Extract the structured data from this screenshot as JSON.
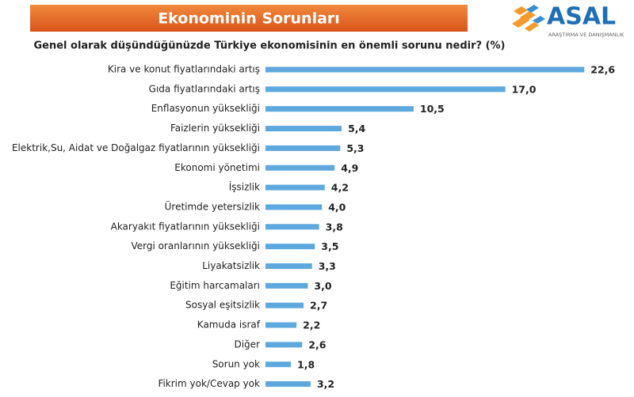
{
  "logo": {
    "name": "ASAL",
    "tagline": "ARAŞTIRMA VE DANIŞMANLIK"
  },
  "chart_data": {
    "type": "bar",
    "orientation": "horizontal",
    "title": "Ekonominin Sorunları",
    "subtitle": "Genel olarak düşündüğünüzde Türkiye ekonomisinin en önemli sorunu nedir? (%)",
    "color": "#5ea8de",
    "categories": [
      "Kira ve konut fiyatlarındaki artış",
      "Gıda fiyatlarındaki artış",
      "Enflasyonun yüksekliği",
      "Faizlerin yüksekliği",
      "Elektrik,Su, Aidat ve Doğalgaz fiyatlarının yüksekliği",
      "Ekonomi yönetimi",
      "İşsizlik",
      "Üretimde yetersizlik",
      "Akaryakıt fiyatlarının yüksekliği",
      "Vergi oranlarının yüksekliği",
      "Liyakatsizlik",
      "Eğitim harcamaları",
      "Sosyal eşitsizlik",
      "Kamuda israf",
      "Diğer",
      "Sorun yok",
      "Fikrim yok/Cevap yok"
    ],
    "values": [
      22.6,
      17.0,
      10.5,
      5.4,
      5.3,
      4.9,
      4.2,
      4.0,
      3.8,
      3.5,
      3.3,
      3.0,
      2.7,
      2.2,
      2.6,
      1.8,
      3.2
    ],
    "value_labels": [
      "22,6",
      "17,0",
      "10,5",
      "5,4",
      "5,3",
      "4,9",
      "4,2",
      "4,0",
      "3,8",
      "3,5",
      "3,3",
      "3,0",
      "2,7",
      "2,2",
      "2,6",
      "1,8",
      "3,2"
    ]
  }
}
